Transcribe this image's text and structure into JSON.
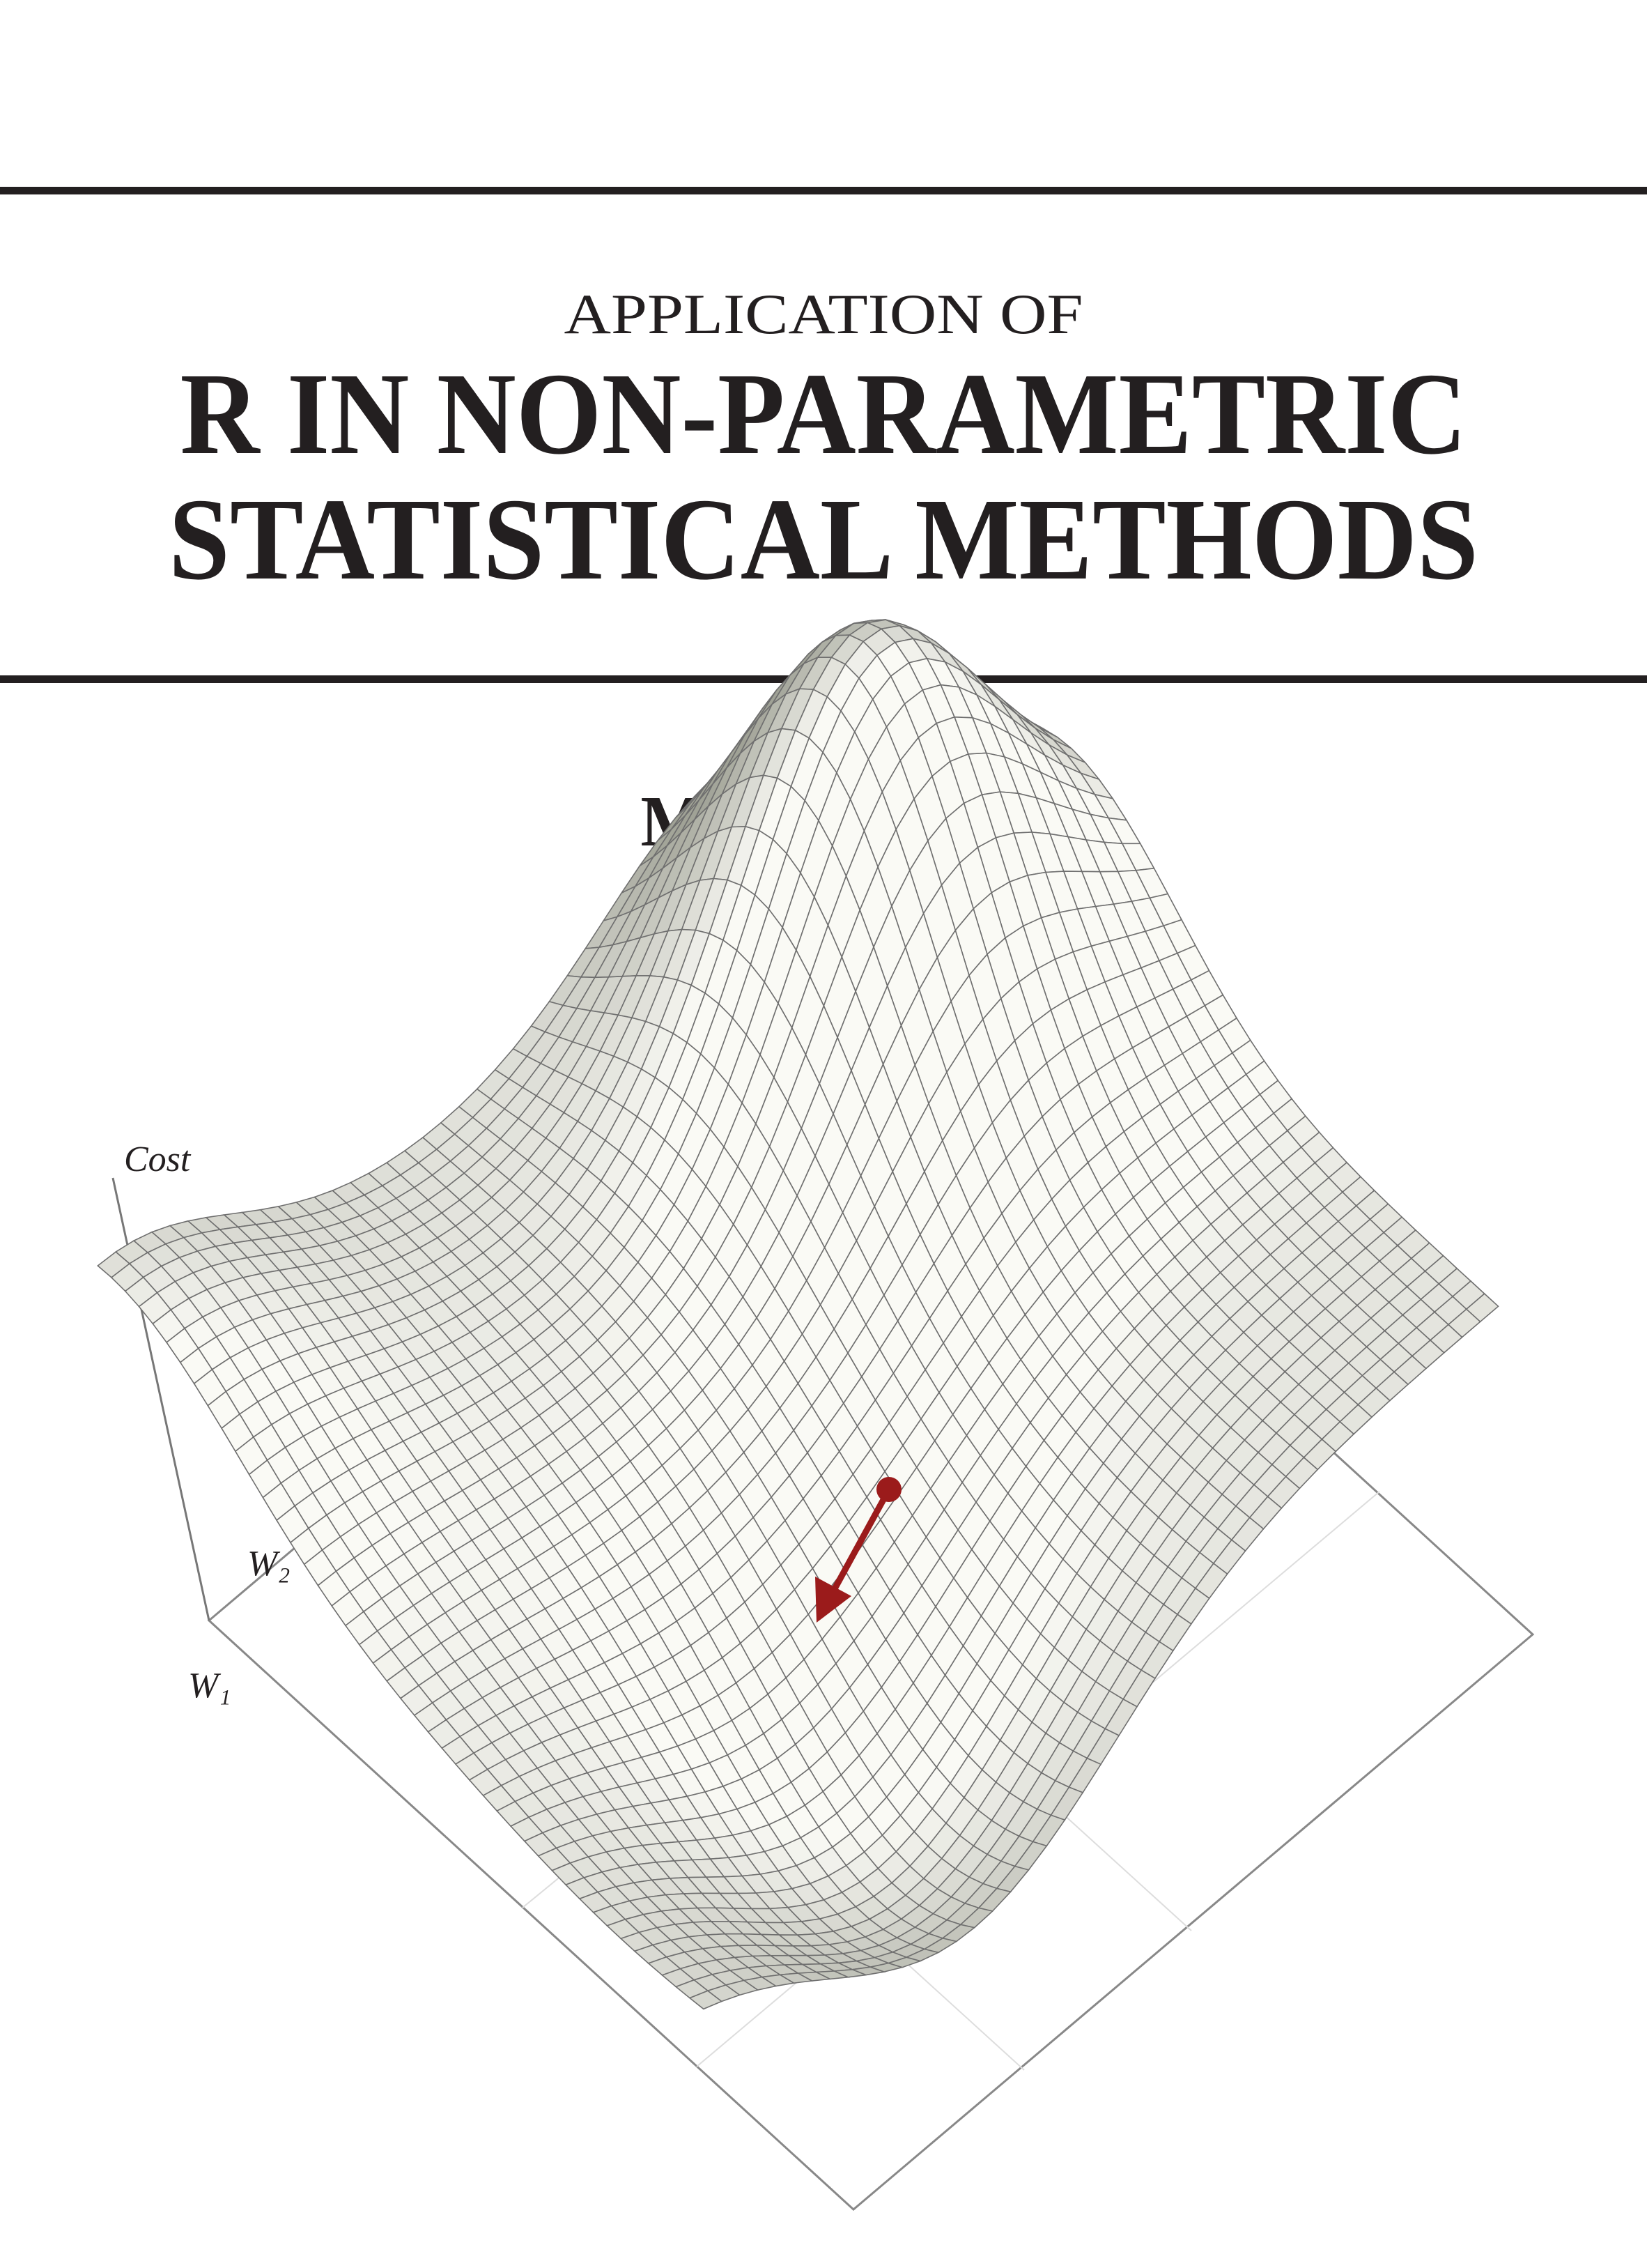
{
  "header": {
    "subtitle": "APPLICATION OF",
    "title_lines": [
      "R IN NON-PARAMETRIC",
      "STATISTICAL METHODS"
    ]
  },
  "author": "M. SEBERT",
  "illustration": {
    "axis_labels": {
      "z": "Cost",
      "w2": "W₂",
      "w1": "W₁"
    }
  }
}
